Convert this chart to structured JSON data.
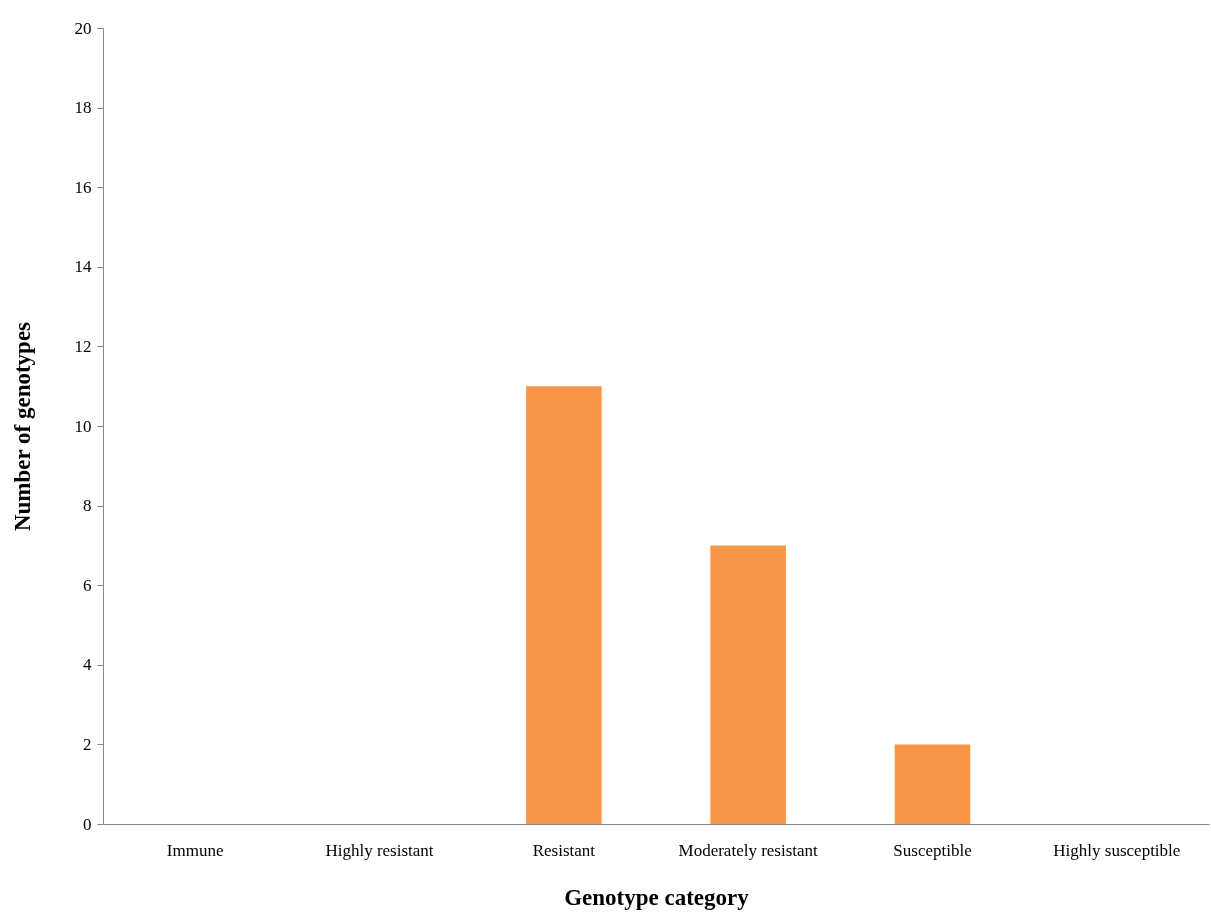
{
  "chart_data": {
    "type": "bar",
    "xlabel": "Genotype category",
    "ylabel": "Number of genotypes",
    "categories": [
      "Immune",
      "Highly resistant",
      "Resistant",
      "Moderately resistant",
      "Susceptible",
      "Highly susceptible"
    ],
    "values": [
      0,
      0,
      11,
      7,
      2,
      0
    ],
    "color": "#f79646",
    "ylim": [
      0,
      20
    ],
    "yticks": [
      0,
      2,
      4,
      6,
      8,
      10,
      12,
      14,
      16,
      18,
      20
    ],
    "grid": false
  }
}
